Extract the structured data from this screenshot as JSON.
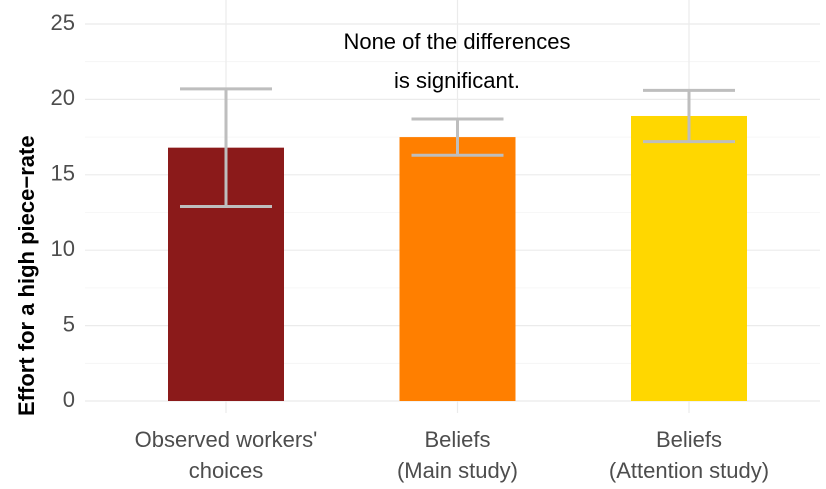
{
  "chart_data": {
    "type": "bar",
    "y_label": "Effort for a high piece−rate",
    "annotation": [
      "None of the differences",
      "is significant."
    ],
    "categories": [
      [
        "Observed workers'",
        "choices"
      ],
      [
        "Beliefs",
        "(Main study)"
      ],
      [
        "Beliefs",
        "(Attention study)"
      ]
    ],
    "values": [
      16.8,
      17.5,
      18.9
    ],
    "errors": [
      3.9,
      1.2,
      1.7
    ],
    "colors": [
      "#8b1a1a",
      "#ff7f00",
      "#ffd700"
    ],
    "error_color": "#bebebe",
    "ylim": [
      0,
      25
    ],
    "yticks": [
      0,
      5,
      10,
      15,
      20,
      25
    ],
    "grid": true
  }
}
